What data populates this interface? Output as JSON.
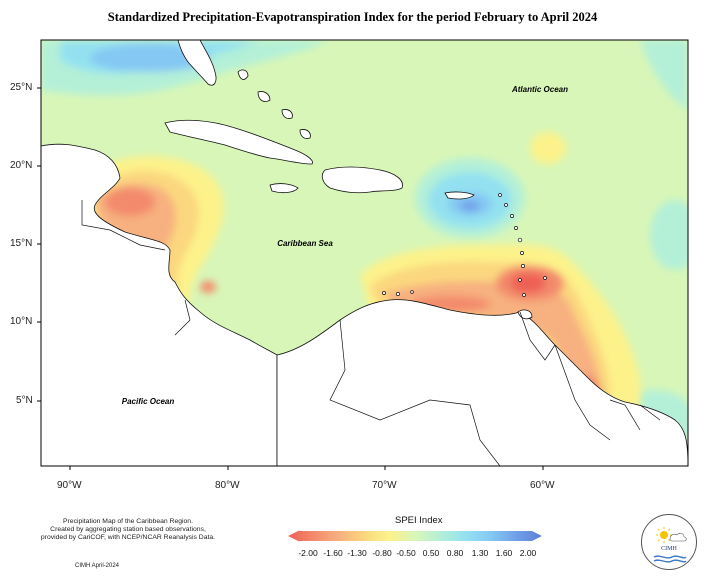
{
  "title": "Standardized Precipitation-Evapotranspiration Index for the period February to April 2024",
  "map_labels": {
    "atlantic": "Atlantic Ocean",
    "caribbean": "Caribbean Sea",
    "pacific": "Pacific Ocean"
  },
  "lat_ticks": [
    "25°N",
    "20°N",
    "15°N",
    "10°N",
    "5°N"
  ],
  "lon_ticks": [
    "90°W",
    "80°W",
    "70°W",
    "60°W"
  ],
  "footnote": {
    "line1": "Precipitation Map of the Caribbean Region.",
    "line2": "Created by aggregating station based observations,",
    "line3": "provided by CariCOF, with NCEP/NCAR Reanalysis Data."
  },
  "credit": "CIMH April-2024",
  "legend": {
    "title": "SPEI Index",
    "ticks": [
      "-2.00",
      "-1.60",
      "-1.30",
      "-0.80",
      "-0.50",
      "0.50",
      "0.80",
      "1.30",
      "1.60",
      "2.00"
    ],
    "colors": [
      "#ee6055",
      "#f38a6c",
      "#f7b07f",
      "#fbd77f",
      "#fdf28a",
      "#d8f6b8",
      "#b4f0d8",
      "#93e1f0",
      "#85c8f4",
      "#6f9fe6",
      "#5f7fd8"
    ]
  },
  "logo": {
    "text": "CIMH"
  }
}
